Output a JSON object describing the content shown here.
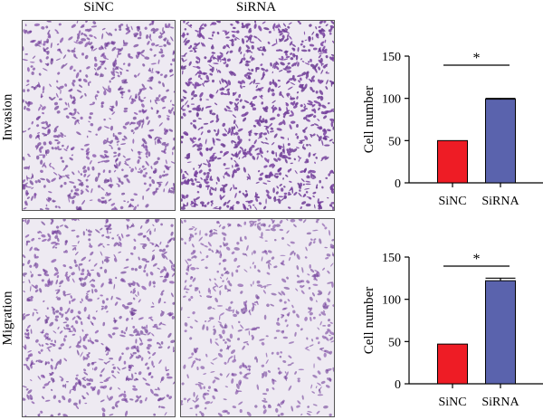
{
  "columns": [
    "SiNC",
    "SiRNA"
  ],
  "rows": [
    "Invasion",
    "Migration"
  ],
  "panels": [
    {
      "row": "Invasion",
      "col": "SiNC",
      "density": 0.62,
      "texture": "image-invasion-sinc"
    },
    {
      "row": "Invasion",
      "col": "SiRNA",
      "density": 0.9,
      "texture": "image-invasion-sirna"
    },
    {
      "row": "Migration",
      "col": "SiNC",
      "density": 0.55,
      "texture": "image-migration-sinc"
    },
    {
      "row": "Migration",
      "col": "SiRNA",
      "density": 0.42,
      "texture": "image-migration-sirna"
    }
  ],
  "colors": {
    "sinc": "#ee1c25",
    "sirna": "#5a63ad",
    "stain": "#6a3d8f"
  },
  "chart_data": [
    {
      "type": "bar",
      "categories": [
        "SiNC",
        "SiRNA"
      ],
      "values": [
        50,
        99
      ],
      "errors": [
        0,
        1
      ],
      "ylabel": "Cell number",
      "xlabel": "",
      "ylim": [
        0,
        150
      ],
      "yticks": [
        0,
        50,
        100,
        150
      ],
      "significance": "*"
    },
    {
      "type": "bar",
      "categories": [
        "SiNC",
        "SiRNA"
      ],
      "values": [
        47,
        122
      ],
      "errors": [
        0,
        3
      ],
      "ylabel": "Cell number",
      "xlabel": "",
      "ylim": [
        0,
        150
      ],
      "yticks": [
        0,
        50,
        100,
        150
      ],
      "significance": "*"
    }
  ]
}
